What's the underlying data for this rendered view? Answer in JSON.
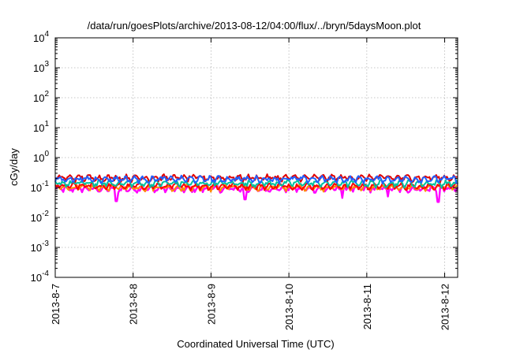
{
  "chart_data": {
    "type": "line",
    "title": "/data/run/goesPlots/archive/2013-08-12/04:00/flux/../bryn/5daysMoon.plot",
    "xlabel": "Coordinated Universal Time (UTC)",
    "ylabel": "cGy/day",
    "y_scale": "log",
    "ylim": [
      0.0001,
      10000
    ],
    "xlim": [
      "2013-08-07 00:00",
      "2013-08-12 04:00"
    ],
    "grid": true,
    "legend": "none",
    "x_ticks": [
      "2013-8-7",
      "2013-8-8",
      "2013-8-9",
      "2013-8-10",
      "2013-8-11",
      "2013-8-12"
    ],
    "y_ticks": [
      {
        "base": "10",
        "exp": "-4"
      },
      {
        "base": "10",
        "exp": "-3"
      },
      {
        "base": "10",
        "exp": "-2"
      },
      {
        "base": "10",
        "exp": "-1"
      },
      {
        "base": "10",
        "exp": "0"
      },
      {
        "base": "10",
        "exp": "1"
      },
      {
        "base": "10",
        "exp": "2"
      },
      {
        "base": "10",
        "exp": "3"
      },
      {
        "base": "10",
        "exp": "4"
      }
    ],
    "series": [
      {
        "color": "#ff00ff",
        "level": 0.085,
        "dips": [
          {
            "x": "2013-08-07 18:50",
            "y": 0.035
          },
          {
            "x": "2013-08-09 10:30",
            "y": 0.04
          },
          {
            "x": "2013-08-10 16:30",
            "y": 0.045
          },
          {
            "x": "2013-08-11 06:30",
            "y": 0.05
          },
          {
            "x": "2013-08-11 22:00",
            "y": 0.033
          }
        ]
      },
      {
        "color": "#ff8c00",
        "level": 0.095
      },
      {
        "color": "#ff0000",
        "level": 0.105
      },
      {
        "color": "#00c0a0",
        "level": 0.13
      },
      {
        "color": "#e00000",
        "level": 0.2
      },
      {
        "color": "#2060ff",
        "level": 0.18
      }
    ]
  }
}
